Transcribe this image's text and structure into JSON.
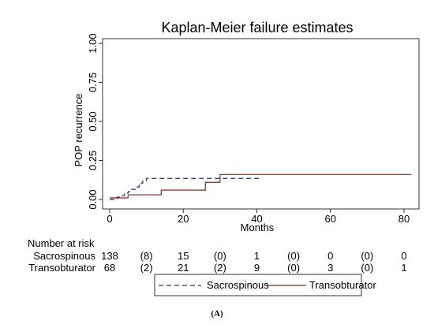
{
  "chart_data": {
    "type": "line",
    "title": "Kaplan-Meier failure estimates",
    "xlabel": "Months",
    "ylabel": "POP recurrence",
    "xlim": [
      0,
      82
    ],
    "ylim": [
      0,
      1
    ],
    "x_ticks": [
      0,
      20,
      40,
      60,
      80
    ],
    "y_ticks": [
      "0.00",
      "0.25",
      "0.50",
      "0.75",
      "1.00"
    ],
    "grid": false,
    "legend_position": "bottom",
    "series": [
      {
        "name": "Sacrospinous",
        "style": "dashed",
        "color": "#1f2f8a",
        "x": [
          0,
          2,
          3,
          4,
          5,
          6,
          7,
          8,
          9,
          10,
          41
        ],
        "y": [
          0,
          0.015,
          0.025,
          0.04,
          0.05,
          0.065,
          0.08,
          0.105,
          0.12,
          0.135,
          0.135
        ]
      },
      {
        "name": "Transobturator",
        "style": "solid",
        "color": "#7a2a20",
        "x": [
          0,
          5,
          14,
          26,
          30,
          82
        ],
        "y": [
          0.01,
          0.03,
          0.06,
          0.11,
          0.16,
          0.16
        ]
      }
    ]
  },
  "risk_table": {
    "header": "Number at risk",
    "rows": [
      {
        "label": "Sacrospinous",
        "values": [
          "138",
          "(8)",
          "15",
          "(0)",
          "1",
          "(0)",
          "0",
          "(0)",
          "0"
        ]
      },
      {
        "label": "Transobturator",
        "values": [
          "68",
          "(2)",
          "21",
          "(2)",
          "9",
          "(0)",
          "3",
          "(0)",
          "1"
        ]
      }
    ]
  },
  "figure_label": "(A)"
}
